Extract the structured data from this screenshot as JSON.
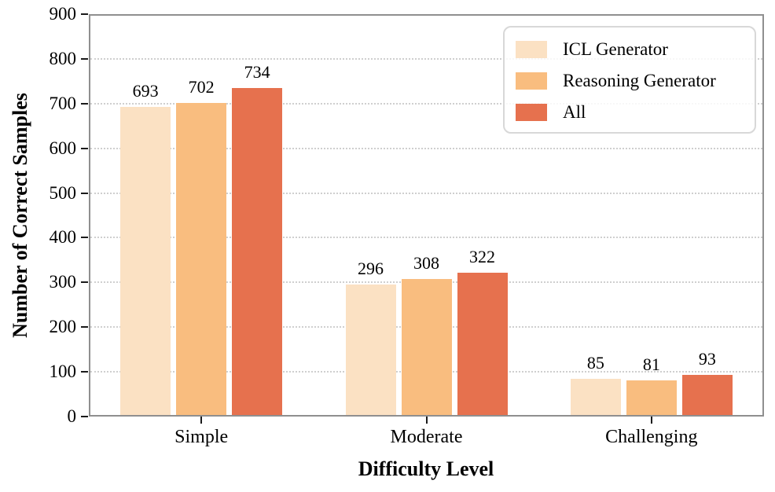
{
  "chart_data": {
    "type": "bar",
    "title": "",
    "xlabel": "Difficulty Level",
    "ylabel": "Number of Correct Samples",
    "categories": [
      "Simple",
      "Moderate",
      "Challenging"
    ],
    "series": [
      {
        "name": "ICL Generator",
        "color": "#FBE1C3",
        "values": [
          693,
          296,
          85
        ]
      },
      {
        "name": "Reasoning Generator",
        "color": "#F9BD7F",
        "values": [
          702,
          308,
          81
        ]
      },
      {
        "name": "All",
        "color": "#E6714E",
        "values": [
          734,
          322,
          93
        ]
      }
    ],
    "ylim": [
      0,
      900
    ],
    "yticks": [
      0,
      100,
      200,
      300,
      400,
      500,
      600,
      700,
      800,
      900
    ],
    "grid": "horizontal-dotted",
    "legend_position": "top-right",
    "styles": {
      "grid_color": "#cfcfcf",
      "spine_color": "#8f8f8f",
      "tick_color": "#1a1a1a",
      "legend_border_color": "#d8d8d8",
      "text_color": "#000000"
    }
  }
}
